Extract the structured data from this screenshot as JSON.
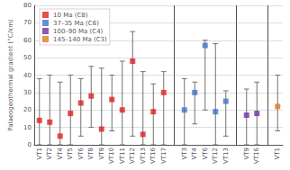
{
  "chart_data": {
    "type": "scatter",
    "ylabel": "Palaeogeothermal gradient (°C/km)",
    "categories": [
      "VT1",
      "VT2",
      "VT4",
      "VT5",
      "VT6",
      "VT8",
      "VT9",
      "VT10",
      "VT11",
      "VT12",
      "VT13",
      "VT16",
      "VT17",
      null,
      "VT3",
      "VT4",
      "VT6",
      "VT12",
      "VT13",
      null,
      "VT9",
      "VT16",
      null,
      "VT1"
    ],
    "series": [
      {
        "name": "10 Ma (C8)",
        "color": "#e02020",
        "values": [
          14,
          13,
          5,
          18,
          24,
          28,
          9,
          26,
          20,
          48,
          6,
          19,
          30,
          null,
          null,
          null,
          null,
          null,
          null,
          null,
          null,
          null,
          null,
          null
        ],
        "lo": [
          0,
          0,
          0,
          0,
          5,
          10,
          0,
          8,
          0,
          5,
          0,
          0,
          0,
          null,
          null,
          null,
          null,
          null,
          null,
          null,
          null,
          null,
          null,
          null
        ],
        "hi": [
          38,
          40,
          36,
          40,
          38,
          45,
          44,
          40,
          48,
          65,
          42,
          35,
          42,
          null,
          null,
          null,
          null,
          null,
          null,
          null,
          null,
          null,
          null,
          null
        ]
      },
      {
        "name": "37–35 Ma (C6)",
        "color": "#4472c4",
        "values": [
          null,
          null,
          null,
          null,
          null,
          null,
          null,
          null,
          null,
          null,
          null,
          null,
          null,
          null,
          20,
          30,
          57,
          19,
          25,
          null,
          null,
          null,
          null,
          null
        ],
        "lo": [
          null,
          null,
          null,
          null,
          null,
          null,
          null,
          null,
          null,
          null,
          null,
          null,
          null,
          null,
          0,
          12,
          20,
          0,
          5,
          null,
          null,
          null,
          null,
          null
        ],
        "hi": [
          null,
          null,
          null,
          null,
          null,
          null,
          null,
          null,
          null,
          null,
          null,
          null,
          null,
          null,
          38,
          36,
          60,
          58,
          31,
          null,
          null,
          null,
          null,
          null
        ]
      },
      {
        "name": "100–90 Ma (C4)",
        "color": "#7030a0",
        "values": [
          null,
          null,
          null,
          null,
          null,
          null,
          null,
          null,
          null,
          null,
          null,
          null,
          null,
          null,
          null,
          null,
          null,
          null,
          null,
          null,
          17,
          18,
          null,
          null
        ],
        "lo": [
          null,
          null,
          null,
          null,
          null,
          null,
          null,
          null,
          null,
          null,
          null,
          null,
          null,
          null,
          null,
          null,
          null,
          null,
          null,
          null,
          0,
          0,
          null,
          null
        ],
        "hi": [
          null,
          null,
          null,
          null,
          null,
          null,
          null,
          null,
          null,
          null,
          null,
          null,
          null,
          null,
          null,
          null,
          null,
          null,
          null,
          null,
          32,
          36,
          null,
          null
        ]
      },
      {
        "name": "145–140 Ma (C3)",
        "color": "#e07820",
        "values": [
          null,
          null,
          null,
          null,
          null,
          null,
          null,
          null,
          null,
          null,
          null,
          null,
          null,
          null,
          null,
          null,
          null,
          null,
          null,
          null,
          null,
          null,
          null,
          22
        ],
        "lo": [
          null,
          null,
          null,
          null,
          null,
          null,
          null,
          null,
          null,
          null,
          null,
          null,
          null,
          null,
          null,
          null,
          null,
          null,
          null,
          null,
          null,
          null,
          null,
          8
        ],
        "hi": [
          null,
          null,
          null,
          null,
          null,
          null,
          null,
          null,
          null,
          null,
          null,
          null,
          null,
          null,
          null,
          null,
          null,
          null,
          null,
          null,
          null,
          null,
          null,
          40
        ]
      }
    ],
    "ylim": [
      0,
      80
    ],
    "yticks": [
      0,
      10,
      20,
      30,
      40,
      50,
      60,
      70,
      80
    ],
    "grid": true,
    "legend": "upper left",
    "marker": "square"
  }
}
